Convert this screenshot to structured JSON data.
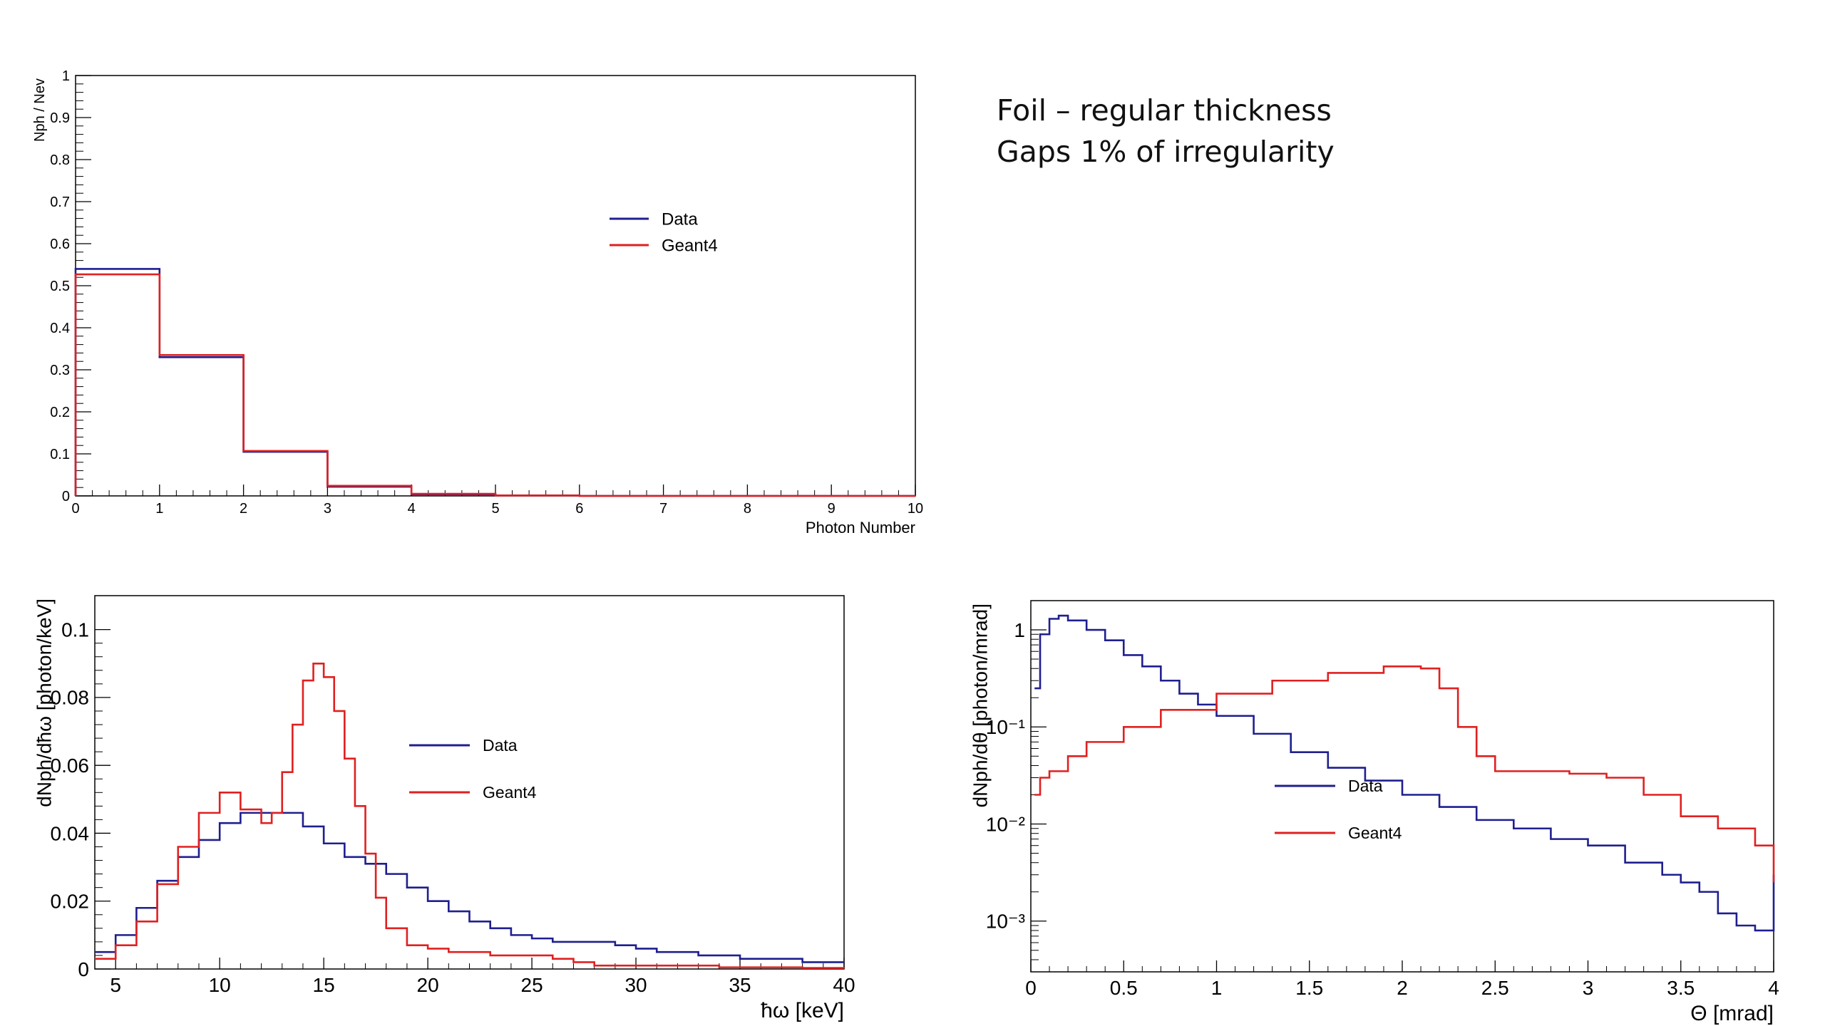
{
  "note": {
    "line1": "Foil – regular thickness",
    "line2": "Gaps 1% of irregularity"
  },
  "colors": {
    "data": "#1f1f8f",
    "geant4": "#e02020",
    "frame": "#000000"
  },
  "chart_data": [
    {
      "id": "photon-number",
      "type": "step",
      "xlabel": "Photon Number",
      "ylabel": "Nph / Nev",
      "xlim": [
        0,
        10
      ],
      "ylim": [
        0,
        1
      ],
      "xticks": [
        0,
        1,
        2,
        3,
        4,
        5,
        6,
        7,
        8,
        9,
        10
      ],
      "yticks": [
        0,
        0.1,
        0.2,
        0.3,
        0.4,
        0.5,
        0.6,
        0.7,
        0.8,
        0.9,
        1
      ],
      "ytick_labels": [
        "0",
        "0.1",
        "0.2",
        "0.3",
        "0.4",
        "0.5",
        "0.6",
        "0.7",
        "0.8",
        "0.9",
        "1"
      ],
      "legend": [
        "Data",
        "Geant4"
      ],
      "legend_position": "center-right",
      "bin_width": 1,
      "series": [
        {
          "name": "Data",
          "color": "#1f1f8f",
          "values": [
            0.54,
            0.33,
            0.105,
            0.022,
            0.004,
            0.001,
            0,
            0,
            0,
            0
          ]
        },
        {
          "name": "Geant4",
          "color": "#e02020",
          "values": [
            0.527,
            0.335,
            0.107,
            0.024,
            0.005,
            0.001,
            0,
            0,
            0,
            0
          ]
        }
      ]
    },
    {
      "id": "energy-spectrum",
      "type": "step",
      "xlabel": "ħω  [keV]",
      "ylabel": "dNph/dħω [photon/keV]",
      "xlim": [
        4,
        40
      ],
      "ylim": [
        0,
        0.11
      ],
      "xticks": [
        5,
        10,
        15,
        20,
        25,
        30,
        35,
        40
      ],
      "yticks": [
        0,
        0.02,
        0.04,
        0.06,
        0.08,
        0.1
      ],
      "ytick_labels": [
        "0",
        "0.02",
        "0.04",
        "0.06",
        "0.08",
        "0.1"
      ],
      "legend": [
        "Data",
        "Geant4"
      ],
      "legend_position": "center-right",
      "series": [
        {
          "name": "Data",
          "color": "#1f1f8f",
          "x": [
            4,
            5,
            6,
            7,
            8,
            9,
            10,
            11,
            12,
            13,
            14,
            15,
            16,
            17,
            18,
            19,
            20,
            21,
            22,
            23,
            24,
            25,
            26,
            27,
            28,
            29,
            30,
            31,
            32,
            33,
            34,
            35,
            36,
            37,
            38,
            39,
            40
          ],
          "y": [
            0.005,
            0.01,
            0.018,
            0.026,
            0.033,
            0.038,
            0.043,
            0.046,
            0.046,
            0.046,
            0.042,
            0.037,
            0.033,
            0.031,
            0.028,
            0.024,
            0.02,
            0.017,
            0.014,
            0.012,
            0.01,
            0.009,
            0.008,
            0.008,
            0.008,
            0.007,
            0.006,
            0.005,
            0.005,
            0.004,
            0.004,
            0.003,
            0.003,
            0.003,
            0.002,
            0.002,
            0.002
          ]
        },
        {
          "name": "Geant4",
          "color": "#e02020",
          "x": [
            4,
            5,
            6,
            7,
            8,
            9,
            10,
            11,
            12,
            12.5,
            13,
            13.5,
            14,
            14.5,
            15,
            15.5,
            16,
            16.5,
            17,
            17.5,
            18,
            19,
            20,
            21,
            22,
            23,
            24,
            25,
            26,
            27,
            28,
            30,
            32,
            34,
            36,
            38,
            40
          ],
          "y": [
            0.003,
            0.007,
            0.014,
            0.025,
            0.036,
            0.046,
            0.052,
            0.047,
            0.043,
            0.046,
            0.058,
            0.072,
            0.085,
            0.09,
            0.086,
            0.076,
            0.062,
            0.048,
            0.034,
            0.021,
            0.012,
            0.007,
            0.006,
            0.005,
            0.005,
            0.004,
            0.004,
            0.004,
            0.003,
            0.002,
            0.001,
            0.001,
            0.001,
            0.0005,
            0.0005,
            0.0003,
            0.0002
          ]
        }
      ]
    },
    {
      "id": "angular-distribution",
      "type": "step",
      "xlabel": "Θ [mrad]",
      "ylabel": "dNph/dθ [photon/mrad]",
      "log_y": true,
      "xlim": [
        0,
        4
      ],
      "ylim": [
        0.0003,
        2
      ],
      "xticks": [
        0,
        0.5,
        1,
        1.5,
        2,
        2.5,
        3,
        3.5,
        4
      ],
      "yticks": [
        0.001,
        0.01,
        0.1,
        1
      ],
      "ytick_labels": [
        "10⁻³",
        "10⁻²",
        "10⁻¹",
        "1"
      ],
      "legend": [
        "Data",
        "Geant4"
      ],
      "legend_position": "center-right",
      "series": [
        {
          "name": "Data",
          "color": "#1f1f8f",
          "x": [
            0.02,
            0.05,
            0.1,
            0.15,
            0.2,
            0.3,
            0.4,
            0.5,
            0.6,
            0.7,
            0.8,
            0.9,
            1.0,
            1.2,
            1.4,
            1.6,
            1.8,
            2.0,
            2.2,
            2.4,
            2.6,
            2.8,
            3.0,
            3.2,
            3.4,
            3.5,
            3.6,
            3.7,
            3.8,
            3.9,
            4.0
          ],
          "y": [
            0.25,
            0.9,
            1.3,
            1.4,
            1.25,
            1.0,
            0.78,
            0.55,
            0.42,
            0.3,
            0.22,
            0.17,
            0.13,
            0.085,
            0.055,
            0.038,
            0.028,
            0.02,
            0.015,
            0.011,
            0.009,
            0.007,
            0.006,
            0.004,
            0.003,
            0.0025,
            0.002,
            0.0012,
            0.0009,
            0.0008,
            0.003
          ]
        },
        {
          "name": "Geant4",
          "color": "#e02020",
          "x": [
            0.02,
            0.05,
            0.1,
            0.2,
            0.3,
            0.5,
            0.7,
            1.0,
            1.3,
            1.6,
            1.9,
            2.1,
            2.2,
            2.3,
            2.4,
            2.5,
            2.7,
            2.9,
            3.1,
            3.3,
            3.5,
            3.7,
            3.9,
            4.0
          ],
          "y": [
            0.02,
            0.03,
            0.035,
            0.05,
            0.07,
            0.1,
            0.15,
            0.22,
            0.3,
            0.36,
            0.42,
            0.4,
            0.25,
            0.1,
            0.05,
            0.035,
            0.035,
            0.033,
            0.03,
            0.02,
            0.012,
            0.009,
            0.006,
            0.0025
          ]
        }
      ]
    }
  ]
}
